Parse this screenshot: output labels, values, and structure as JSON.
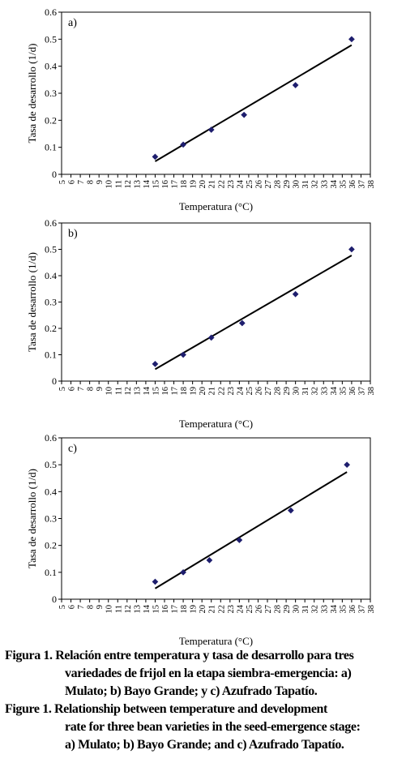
{
  "chart_data": [
    {
      "type": "scatter",
      "panel_label": "a)",
      "xlabel": "Temperatura (°C)",
      "ylabel": "Tasa de desarrollo (1/d)",
      "xlim": [
        5,
        38
      ],
      "ylim": [
        0,
        0.6
      ],
      "x_ticks": [
        5,
        6,
        7,
        8,
        9,
        10,
        11,
        12,
        13,
        14,
        15,
        16,
        17,
        18,
        19,
        20,
        21,
        22,
        23,
        24,
        25,
        26,
        27,
        28,
        29,
        30,
        31,
        32,
        33,
        34,
        35,
        36,
        37,
        38
      ],
      "y_ticks": [
        "0",
        "0.1",
        "0.2",
        "0.3",
        "0.4",
        "0.5",
        "0.6"
      ],
      "points": [
        {
          "x": 15,
          "y": 0.065
        },
        {
          "x": 18,
          "y": 0.11
        },
        {
          "x": 21,
          "y": 0.165
        },
        {
          "x": 24.5,
          "y": 0.22
        },
        {
          "x": 30,
          "y": 0.33
        },
        {
          "x": 36,
          "y": 0.5
        }
      ],
      "trendline": {
        "x": [
          15,
          36
        ],
        "y": [
          0.048,
          0.478
        ]
      },
      "grid": false,
      "marker_color": "#1e1e6e",
      "line_color": "#000000"
    },
    {
      "type": "scatter",
      "panel_label": "b)",
      "xlabel": "Temperatura (°C)",
      "ylabel": "Tasa de desarrollo (1/d)",
      "xlim": [
        5,
        38
      ],
      "ylim": [
        0,
        0.6
      ],
      "x_ticks": [
        5,
        6,
        7,
        8,
        9,
        10,
        11,
        12,
        13,
        14,
        15,
        16,
        17,
        18,
        19,
        20,
        21,
        22,
        23,
        24,
        25,
        26,
        27,
        28,
        29,
        30,
        31,
        32,
        33,
        34,
        35,
        36,
        37,
        38
      ],
      "y_ticks": [
        "0",
        "0.1",
        "0.2",
        "0.3",
        "0.4",
        "0.5",
        "0.6"
      ],
      "points": [
        {
          "x": 15,
          "y": 0.065
        },
        {
          "x": 18,
          "y": 0.1
        },
        {
          "x": 21,
          "y": 0.165
        },
        {
          "x": 24.3,
          "y": 0.22
        },
        {
          "x": 30,
          "y": 0.33
        },
        {
          "x": 36,
          "y": 0.5
        }
      ],
      "trendline": {
        "x": [
          15,
          36
        ],
        "y": [
          0.045,
          0.477
        ]
      },
      "grid": false,
      "marker_color": "#1e1e6e",
      "line_color": "#000000"
    },
    {
      "type": "scatter",
      "panel_label": "c)",
      "xlabel": "Temperatura (°C)",
      "ylabel": "Tasa de desarrollo (1/d)",
      "xlim": [
        5,
        38
      ],
      "ylim": [
        0,
        0.6
      ],
      "x_ticks": [
        5,
        6,
        7,
        8,
        9,
        10,
        11,
        12,
        13,
        14,
        15,
        16,
        17,
        18,
        19,
        20,
        21,
        22,
        23,
        24,
        25,
        26,
        27,
        28,
        29,
        30,
        31,
        32,
        33,
        34,
        35,
        36,
        37,
        38
      ],
      "y_ticks": [
        "0",
        "0.1",
        "0.2",
        "0.3",
        "0.4",
        "0.5",
        "0.6"
      ],
      "points": [
        {
          "x": 15,
          "y": 0.065
        },
        {
          "x": 18,
          "y": 0.1
        },
        {
          "x": 20.8,
          "y": 0.145
        },
        {
          "x": 24,
          "y": 0.22
        },
        {
          "x": 29.5,
          "y": 0.33
        },
        {
          "x": 35.5,
          "y": 0.5
        }
      ],
      "trendline": {
        "x": [
          15,
          35.5
        ],
        "y": [
          0.04,
          0.473
        ]
      },
      "grid": false,
      "marker_color": "#1e1e6e",
      "line_color": "#000000"
    }
  ],
  "caption": {
    "es_line1": "Figura 1. Relación entre temperatura y tasa de desarrollo para tres",
    "es_line2": "variedades de frijol en la etapa siembra-emergencia: a)",
    "es_line3": "Mulato; b) Bayo Grande; y c) Azufrado Tapatío.",
    "en_line1": "Figure 1. Relationship between temperature and development",
    "en_line2": "rate for three bean varieties in the seed-emergence stage:",
    "en_line3": "a) Mulato; b) Bayo Grande; and c) Azufrado Tapatío."
  }
}
